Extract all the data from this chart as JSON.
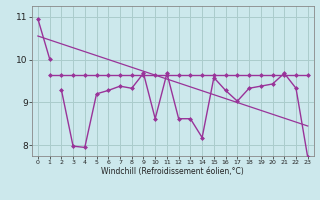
{
  "background_color": "#cce8ec",
  "grid_color": "#aacccc",
  "line_color": "#993399",
  "xlim": [
    -0.5,
    23.5
  ],
  "ylim": [
    7.75,
    11.25
  ],
  "yticks": [
    8,
    9,
    10,
    11
  ],
  "xticks": [
    0,
    1,
    2,
    3,
    4,
    5,
    6,
    7,
    8,
    9,
    10,
    11,
    12,
    13,
    14,
    15,
    16,
    17,
    18,
    19,
    20,
    21,
    22,
    23
  ],
  "xlabel": "Windchill (Refroidissement éolien,°C)",
  "line1_x": [
    0,
    1
  ],
  "line1_y": [
    10.95,
    10.02
  ],
  "line2_x": [
    1,
    2,
    3,
    4,
    5,
    6,
    7,
    8,
    9,
    10,
    11,
    12,
    13,
    14,
    15,
    16,
    17,
    18,
    19,
    20,
    21,
    22,
    23
  ],
  "line2_y": [
    9.65,
    9.65,
    9.65,
    9.65,
    9.65,
    9.65,
    9.65,
    9.65,
    9.65,
    9.65,
    9.65,
    9.65,
    9.65,
    9.65,
    9.65,
    9.65,
    9.65,
    9.65,
    9.65,
    9.65,
    9.65,
    9.65,
    9.65
  ],
  "line3_x": [
    0,
    23
  ],
  "line3_y": [
    10.55,
    8.45
  ],
  "line4_x": [
    2,
    3,
    4,
    5,
    6,
    7,
    8,
    9,
    10,
    11,
    12,
    13,
    14,
    15,
    16,
    17,
    18,
    19,
    20,
    21,
    22,
    23
  ],
  "line4_y": [
    9.3,
    7.98,
    7.95,
    9.2,
    9.28,
    9.38,
    9.33,
    9.68,
    8.62,
    9.68,
    8.62,
    8.62,
    8.18,
    9.58,
    9.28,
    9.03,
    9.33,
    9.38,
    9.43,
    9.68,
    9.33,
    7.72
  ]
}
